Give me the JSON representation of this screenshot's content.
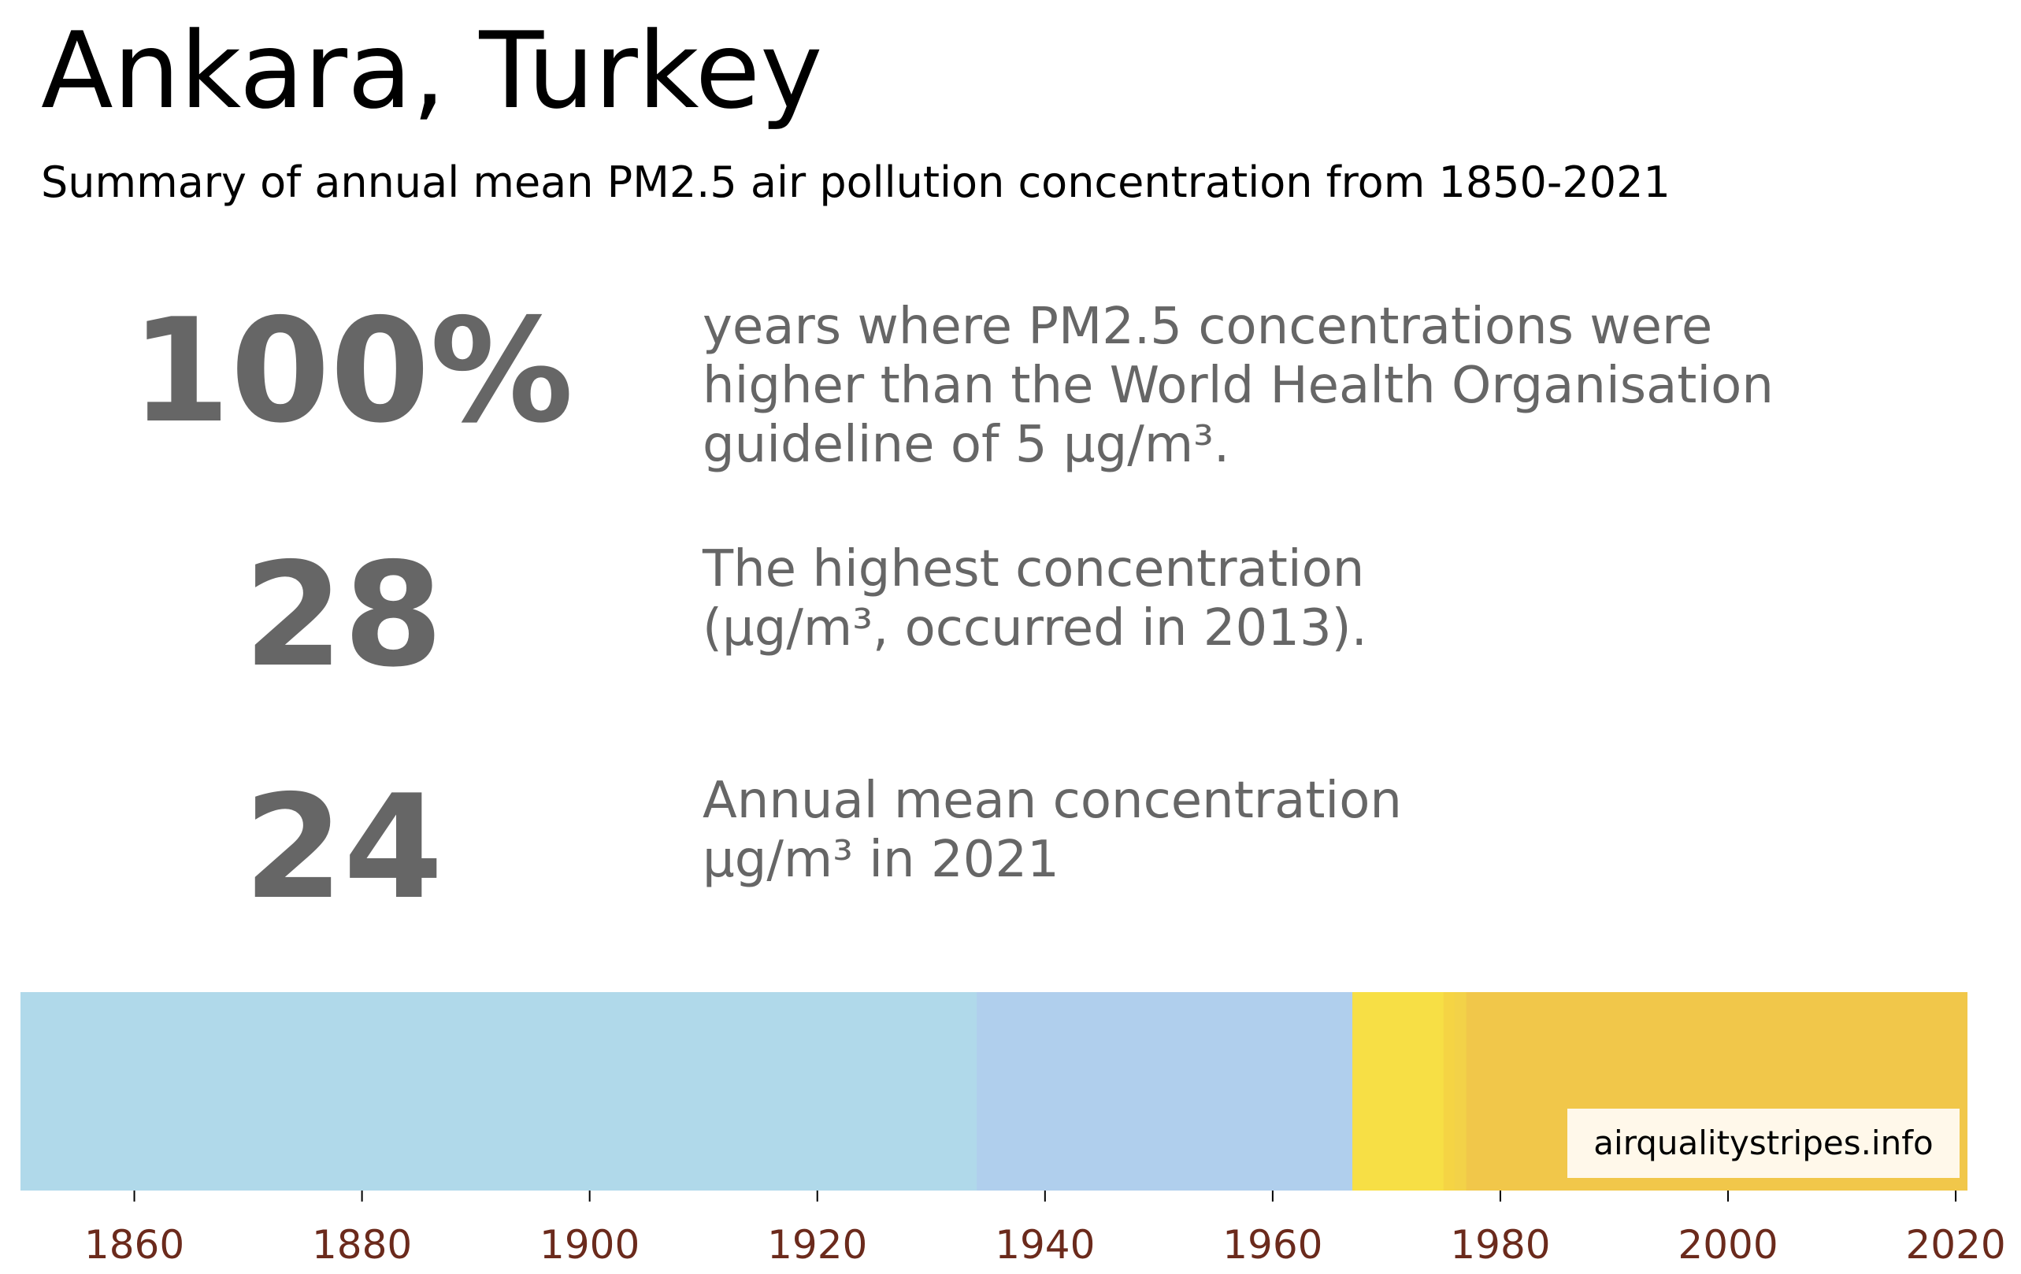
{
  "header": {
    "title": "Ankara, Turkey",
    "subtitle": "Summary of annual mean PM2.5 air pollution concentration from 1850-2021"
  },
  "stats": [
    {
      "value": "100%",
      "description": "years where PM2.5 concentrations were\nhigher than the World Health Organisation\nguideline of 5 μg/m³."
    },
    {
      "value": "28",
      "description": "The highest concentration\n(μg/m³, occurred in 2013)."
    },
    {
      "value": "24",
      "description": "Annual mean concentration\nμg/m³ in 2021"
    }
  ],
  "watermark": "airqualitystripes.info",
  "chart_data": {
    "type": "heatmap",
    "title": "",
    "xlabel": "",
    "ylabel": "",
    "xlim": [
      1850,
      2021
    ],
    "tick_color": "#6b2a1c",
    "x_ticks": [
      1860,
      1880,
      1900,
      1920,
      1940,
      1960,
      1980,
      2000,
      2020
    ],
    "stripes": [
      {
        "start": 1850,
        "end": 1934,
        "color": "#b0d9ea"
      },
      {
        "start": 1934,
        "end": 1967,
        "color": "#b0cfed"
      },
      {
        "start": 1967,
        "end": 1975,
        "color": "#f7df45"
      },
      {
        "start": 1975,
        "end": 1976,
        "color": "#f5d444"
      },
      {
        "start": 1976,
        "end": 1977,
        "color": "#f3d248"
      },
      {
        "start": 1977,
        "end": 2021,
        "color": "#f1c74a"
      }
    ]
  }
}
